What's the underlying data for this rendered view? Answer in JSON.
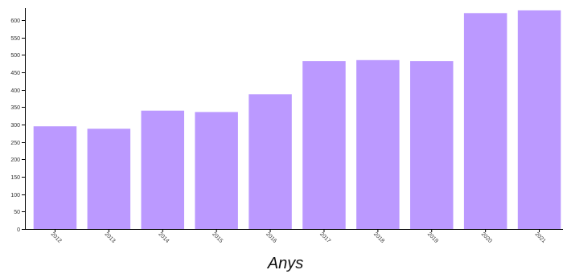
{
  "chart_data": {
    "type": "bar",
    "categories": [
      "2012",
      "2013",
      "2014",
      "2015",
      "2016",
      "2017",
      "2018",
      "2019",
      "2020",
      "2021"
    ],
    "values": [
      295,
      288,
      340,
      336,
      387,
      482,
      485,
      482,
      620,
      628
    ],
    "xlabel": "Anys",
    "ylabel": "",
    "ylim": [
      0,
      630
    ],
    "yticks": [
      0,
      50,
      100,
      150,
      200,
      250,
      300,
      350,
      400,
      450,
      500,
      550,
      600
    ],
    "grid": false,
    "colors": {
      "bar": "#bb99ff",
      "axis": "#000000"
    }
  }
}
